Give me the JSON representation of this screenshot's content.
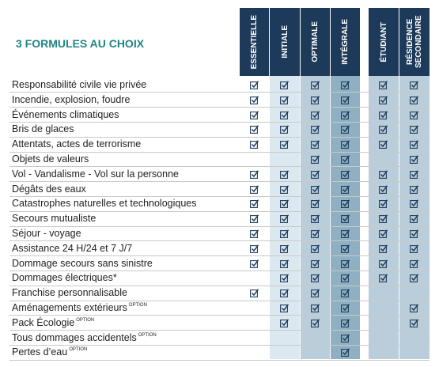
{
  "title": "3 FORMULES AU CHOIX",
  "columns": [
    "ESSENTIELLE",
    "INITIALE",
    "OPTIMALE",
    "INTÉGRALE",
    "ÉTUDIANT",
    "RÉSIDENCE SECONDAIRE"
  ],
  "rows": [
    {
      "label": "Responsabilité civile vie privée",
      "checks": [
        true,
        true,
        true,
        true,
        true,
        true
      ]
    },
    {
      "label": "Incendie, explosion, foudre",
      "checks": [
        true,
        true,
        true,
        true,
        true,
        true
      ]
    },
    {
      "label": "Événements climatiques",
      "checks": [
        true,
        true,
        true,
        true,
        true,
        true
      ]
    },
    {
      "label": "Bris de glaces",
      "checks": [
        true,
        true,
        true,
        true,
        true,
        true
      ]
    },
    {
      "label": "Attentats, actes de terrorisme",
      "checks": [
        true,
        true,
        true,
        true,
        true,
        true
      ]
    },
    {
      "label": "Objets de valeurs",
      "checks": [
        false,
        false,
        true,
        true,
        false,
        true
      ]
    },
    {
      "label": "Vol - Vandalisme - Vol sur la personne",
      "checks": [
        true,
        true,
        true,
        true,
        true,
        true
      ]
    },
    {
      "label": "Dégâts des eaux",
      "checks": [
        true,
        true,
        true,
        true,
        true,
        true
      ]
    },
    {
      "label": "Catastrophes naturelles et technologiques",
      "checks": [
        true,
        true,
        true,
        true,
        true,
        true
      ]
    },
    {
      "label": "Secours mutualiste",
      "checks": [
        true,
        true,
        true,
        true,
        true,
        true
      ]
    },
    {
      "label": "Séjour - voyage",
      "checks": [
        true,
        true,
        true,
        true,
        true,
        true
      ]
    },
    {
      "label": "Assistance 24 H/24 et 7 J/7",
      "checks": [
        true,
        true,
        true,
        true,
        true,
        true
      ]
    },
    {
      "label": "Dommage secours sans sinistre",
      "checks": [
        true,
        true,
        true,
        true,
        true,
        true
      ]
    },
    {
      "label": "Dommages électriques*",
      "checks": [
        false,
        true,
        true,
        true,
        true,
        true
      ]
    },
    {
      "label": "Franchise personnalisable",
      "checks": [
        true,
        true,
        true,
        true,
        false,
        false
      ]
    },
    {
      "label": "Aménagements extérieurs",
      "note": "OPTION",
      "checks": [
        false,
        true,
        true,
        true,
        false,
        true
      ]
    },
    {
      "label": "Pack Écologie",
      "note": "OPTION",
      "checks": [
        false,
        true,
        true,
        true,
        false,
        true
      ]
    },
    {
      "label": "Tous dommages accidentels",
      "note": "OPTION",
      "checks": [
        false,
        false,
        false,
        true,
        false,
        false
      ]
    },
    {
      "label": "Pertes d’eau",
      "note": "OPTION",
      "checks": [
        false,
        false,
        false,
        true,
        false,
        false
      ]
    }
  ]
}
